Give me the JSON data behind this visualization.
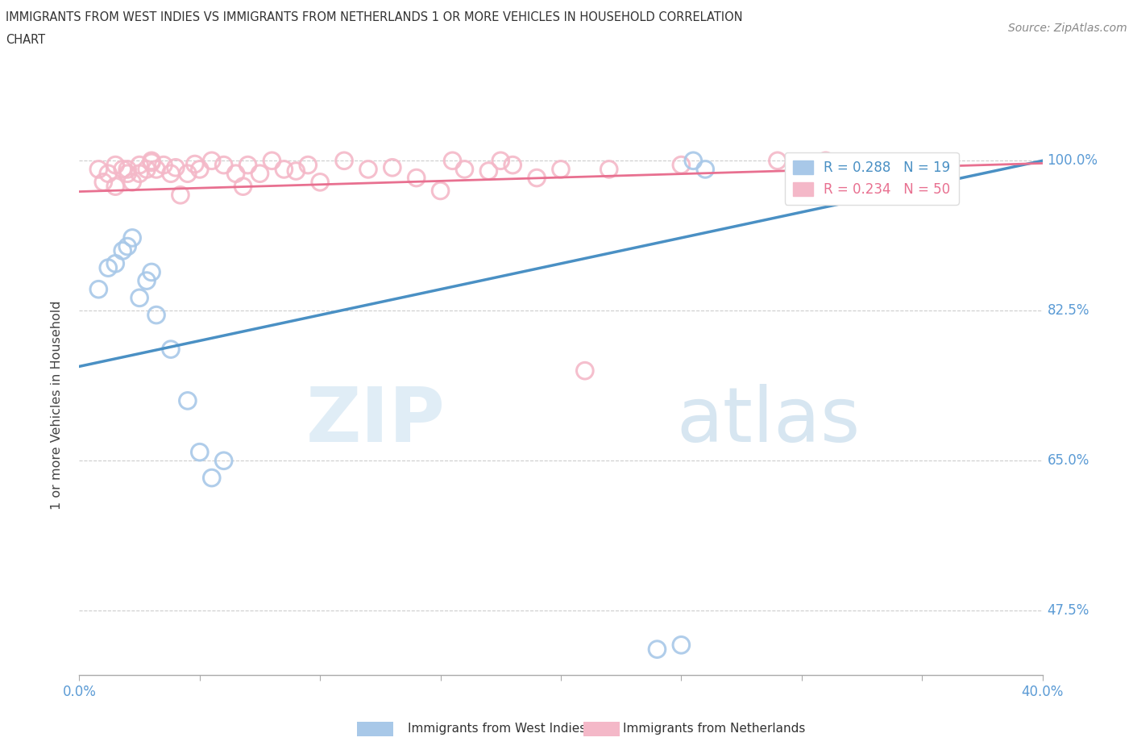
{
  "title_line1": "IMMIGRANTS FROM WEST INDIES VS IMMIGRANTS FROM NETHERLANDS 1 OR MORE VEHICLES IN HOUSEHOLD CORRELATION",
  "title_line2": "CHART",
  "source": "Source: ZipAtlas.com",
  "xlabel": "",
  "ylabel": "1 or more Vehicles in Household",
  "xlim": [
    0.0,
    0.4
  ],
  "ylim": [
    0.4,
    1.03
  ],
  "blue_R": 0.288,
  "blue_N": 19,
  "pink_R": 0.234,
  "pink_N": 50,
  "blue_color": "#A8C8E8",
  "pink_color": "#F4B8C8",
  "blue_line_color": "#4A90C4",
  "pink_line_color": "#E87090",
  "legend_label_blue": "Immigrants from West Indies",
  "legend_label_pink": "Immigrants from Netherlands",
  "watermark_zip": "ZIP",
  "watermark_atlas": "atlas",
  "blue_scatter_x": [
    0.008,
    0.012,
    0.015,
    0.018,
    0.02,
    0.022,
    0.025,
    0.028,
    0.03,
    0.032,
    0.038,
    0.045,
    0.05,
    0.055,
    0.06,
    0.24,
    0.25,
    0.255,
    0.26
  ],
  "blue_scatter_y": [
    0.85,
    0.875,
    0.88,
    0.895,
    0.9,
    0.91,
    0.84,
    0.86,
    0.87,
    0.82,
    0.78,
    0.72,
    0.66,
    0.63,
    0.65,
    0.43,
    0.435,
    1.0,
    0.99
  ],
  "pink_scatter_x": [
    0.008,
    0.01,
    0.012,
    0.015,
    0.015,
    0.018,
    0.02,
    0.02,
    0.022,
    0.025,
    0.025,
    0.028,
    0.03,
    0.03,
    0.032,
    0.035,
    0.038,
    0.04,
    0.042,
    0.045,
    0.048,
    0.05,
    0.055,
    0.06,
    0.065,
    0.068,
    0.07,
    0.075,
    0.08,
    0.085,
    0.09,
    0.095,
    0.1,
    0.11,
    0.12,
    0.13,
    0.14,
    0.15,
    0.155,
    0.16,
    0.17,
    0.175,
    0.18,
    0.19,
    0.2,
    0.21,
    0.22,
    0.25,
    0.29,
    0.31
  ],
  "pink_scatter_y": [
    0.99,
    0.975,
    0.985,
    0.995,
    0.97,
    0.99,
    0.99,
    0.985,
    0.975,
    0.995,
    0.985,
    0.99,
    1.0,
    0.998,
    0.99,
    0.995,
    0.985,
    0.992,
    0.96,
    0.985,
    0.996,
    0.99,
    1.0,
    0.995,
    0.985,
    0.97,
    0.995,
    0.985,
    1.0,
    0.99,
    0.988,
    0.995,
    0.975,
    1.0,
    0.99,
    0.992,
    0.98,
    0.965,
    1.0,
    0.99,
    0.988,
    1.0,
    0.995,
    0.98,
    0.99,
    0.755,
    0.99,
    0.995,
    1.0,
    1.0
  ],
  "background_color": "#FFFFFF",
  "grid_color": "#CCCCCC",
  "tick_label_color": "#5B9BD5"
}
